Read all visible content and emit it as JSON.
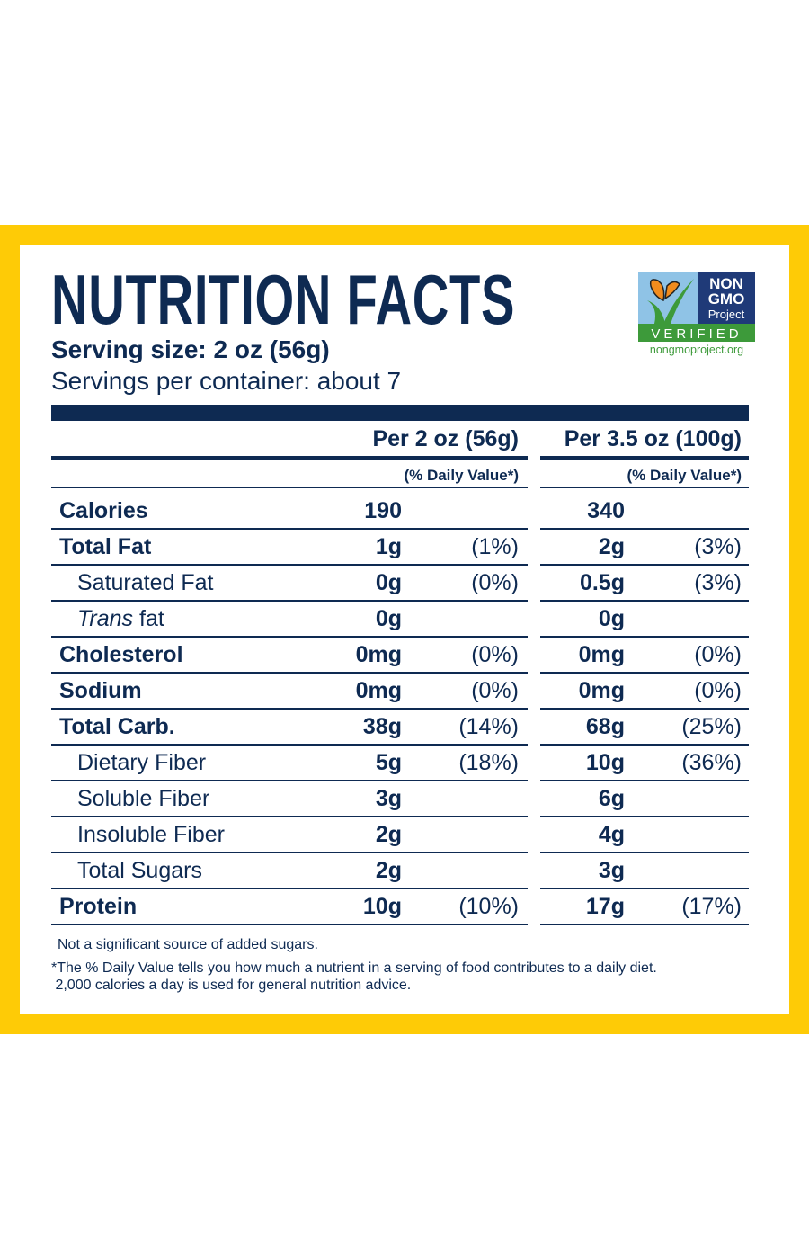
{
  "title": "NUTRITION FACTS",
  "serving_size": "Serving size: 2 oz (56g)",
  "servings_per_container": "Servings per container: about 7",
  "logo": {
    "line1": "NON",
    "line2": "GMO",
    "line3": "Project",
    "verified": "VERIFIED",
    "url": "nongmoproject.org"
  },
  "columns": {
    "col1": "Per 2 oz (56g)",
    "col2": "Per 3.5 oz (100g)",
    "dv1": "(% Daily Value*)",
    "dv2": "(% Daily Value*)"
  },
  "rows": [
    {
      "label": "Calories",
      "bold": true,
      "indent": false,
      "a1": "190",
      "p1": "",
      "a2": "340",
      "p2": ""
    },
    {
      "label": "Total Fat",
      "bold": true,
      "indent": false,
      "a1": "1g",
      "p1": "(1%)",
      "a2": "2g",
      "p2": "(3%)"
    },
    {
      "label": "Saturated Fat",
      "bold": false,
      "indent": true,
      "a1": "0g",
      "p1": "(0%)",
      "a2": "0.5g",
      "p2": "(3%)"
    },
    {
      "label": "Trans",
      "label_suffix": " fat",
      "bold": false,
      "indent": true,
      "italic": true,
      "a1": "0g",
      "p1": "",
      "a2": "0g",
      "p2": ""
    },
    {
      "label": "Cholesterol",
      "bold": true,
      "indent": false,
      "a1": "0mg",
      "p1": "(0%)",
      "a2": "0mg",
      "p2": "(0%)"
    },
    {
      "label": "Sodium",
      "bold": true,
      "indent": false,
      "a1": "0mg",
      "p1": "(0%)",
      "a2": "0mg",
      "p2": "(0%)"
    },
    {
      "label": "Total Carb.",
      "bold": true,
      "indent": false,
      "a1": "38g",
      "p1": "(14%)",
      "a2": "68g",
      "p2": "(25%)"
    },
    {
      "label": "Dietary Fiber",
      "bold": false,
      "indent": true,
      "a1": "5g",
      "p1": "(18%)",
      "a2": "10g",
      "p2": "(36%)"
    },
    {
      "label": "Soluble Fiber",
      "bold": false,
      "indent": true,
      "a1": "3g",
      "p1": "",
      "a2": "6g",
      "p2": ""
    },
    {
      "label": "Insoluble Fiber",
      "bold": false,
      "indent": true,
      "a1": "2g",
      "p1": "",
      "a2": "4g",
      "p2": ""
    },
    {
      "label": "Total Sugars",
      "bold": false,
      "indent": true,
      "a1": "2g",
      "p1": "",
      "a2": "3g",
      "p2": ""
    },
    {
      "label": "Protein",
      "bold": true,
      "indent": false,
      "a1": "10g",
      "p1": "(10%)",
      "a2": "17g",
      "p2": "(17%)"
    }
  ],
  "footnotes": {
    "added_sugars": "Not a significant source of added sugars.",
    "dv_line1": "*The % Daily Value tells you how much a nutrient in a serving of food contributes to a daily diet.",
    "dv_line2": " 2,000 calories a day is used for general nutrition advice."
  },
  "colors": {
    "navy": "#0e2a52",
    "yellow": "#fecb06",
    "logo_blue": "#1f3a78",
    "logo_green": "#3d9a3a",
    "logo_sky": "#8fc3e6",
    "butterfly": "#f28c1e"
  }
}
